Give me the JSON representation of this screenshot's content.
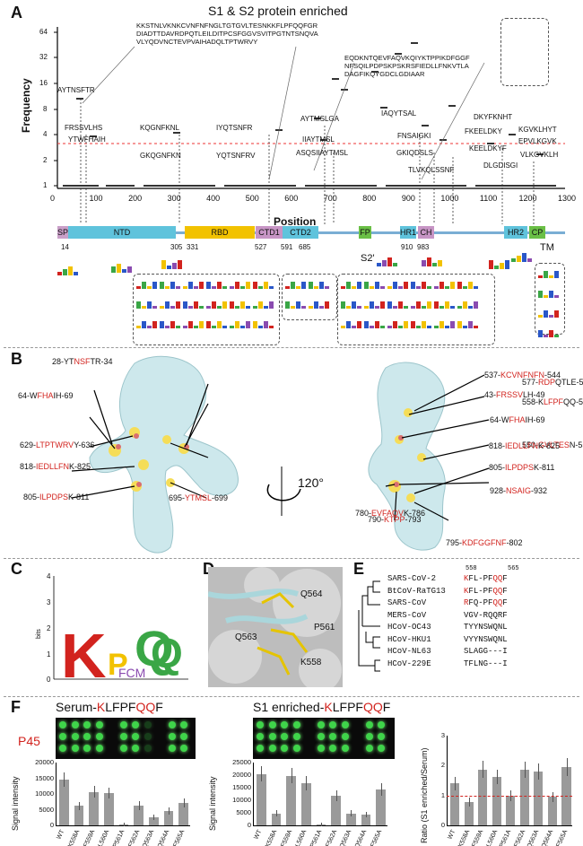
{
  "panels": {
    "a": "A",
    "b": "B",
    "c": "C",
    "d": "D",
    "e": "E",
    "f": "F"
  },
  "panel_a": {
    "title": "S1 & S2 protein enriched",
    "seq_block_1": "KKSTNLVKNKCVNFNFNGLTGTGVLTESNKKFLPFQQFGR\nDIADTTDAVRDPQTLEILDITPCSFGGVSVITPGTNTSNQVA\nVLYQDVNCTEVPVAIHADQLTPTWRVY",
    "seq_block_2": "EQDKNTQEVFAQVKQIYKTPPIKDFGGF\nNFSQILPDPSKPSKRSFIEDLLFNKVTLA\nDAGFIKQYGDCLGDIAAR",
    "peptides": [
      "AYTNSFTR",
      "FRSSVLHS",
      "YTWFHAIH",
      "KQGNFKNL",
      "GKQGNFKN",
      "IYQTSNFR",
      "YQTSNFRV",
      "AYTMSLGA",
      "IIAYTMSL",
      "ASQSIIAYTMSL",
      "IAQYTSAL",
      "FNSAIGKI",
      "GKIQDSLS",
      "TLVKQLSSNF",
      "DKYFKNHT",
      "FKEELDKY",
      "KEELDKYF",
      "DLGDISGI",
      "KGVKLHYT",
      "EPVLKGVK",
      "VLKGVKLH"
    ],
    "axis_y_label": "Frequency",
    "axis_y_ticks": [
      "64",
      "32",
      "16",
      "8",
      "4",
      "2",
      "1"
    ],
    "axis_x_label": "Position",
    "axis_x_ticks": [
      "0",
      "100",
      "200",
      "300",
      "400",
      "500",
      "600",
      "700",
      "800",
      "900",
      "1000",
      "1100",
      "1200",
      "1300"
    ],
    "domains": [
      {
        "name": "SP",
        "color": "#c99fc8"
      },
      {
        "name": "NTD",
        "color": "#5fc3dc"
      },
      {
        "name": "RBD",
        "color": "#f2c200"
      },
      {
        "name": "CTD1",
        "color": "#c795c5"
      },
      {
        "name": "CTD2",
        "color": "#5fc3dc"
      },
      {
        "name": "FP",
        "color": "#6abf46"
      },
      {
        "name": "HR1",
        "color": "#5fc3dc"
      },
      {
        "name": "CH",
        "color": "#c795c5"
      },
      {
        "name": "HR2",
        "color": "#5fc3dc"
      },
      {
        "name": "CP",
        "color": "#6abf46"
      }
    ],
    "domain_positions": [
      "14",
      "305",
      "331",
      "527",
      "591",
      "685",
      "910",
      "983"
    ],
    "tm_label": "TM",
    "s2_label": "S2'"
  },
  "panel_b": {
    "left_labels": [
      {
        "pre": "28-",
        "a": "YT",
        "r": "NSF",
        "b": "TR",
        "post": "-34"
      },
      {
        "pre": "64-",
        "a": "W",
        "r": "FHA",
        "b": "IH",
        "post": "-69"
      },
      {
        "pre": "577-",
        "a": "",
        "r": "RDP",
        "b": "QTLE",
        "post": "-583"
      },
      {
        "pre": "558-",
        "a": "K",
        "r": "LFPF",
        "b": "QQ",
        "post": "-565"
      },
      {
        "pre": "629-",
        "a": "",
        "r": "LTPTWRV",
        "b": "Y",
        "post": "-636"
      },
      {
        "pre": "550-",
        "a": "",
        "r": "GVLTES",
        "b": "N",
        "post": "-556"
      },
      {
        "pre": "818-",
        "a": "",
        "r": "IEDLLFN",
        "b": "K",
        "post": "-825"
      },
      {
        "pre": "695-",
        "a": "",
        "r": "YTMSL",
        "b": "",
        "post": "-699"
      },
      {
        "pre": "805-",
        "a": "",
        "r": "ILPDPS",
        "b": "K",
        "post": "-811"
      }
    ],
    "right_labels": [
      {
        "pre": "537-",
        "a": "",
        "r": "KCVNFNFN",
        "b": "",
        "post": "-544"
      },
      {
        "pre": "43-",
        "a": "",
        "r": "FRSSV",
        "b": "LH",
        "post": "-49"
      },
      {
        "pre": "64-",
        "a": "W",
        "r": "FHA",
        "b": "IH",
        "post": "-69"
      },
      {
        "pre": "818-",
        "a": "",
        "r": "IEDLLFN",
        "b": "K",
        "post": "-825"
      },
      {
        "pre": "805-",
        "a": "",
        "r": "ILPDPS",
        "b": "K",
        "post": "-811"
      },
      {
        "pre": "780-",
        "a": "",
        "r": "EVFAQV",
        "b": "K",
        "post": "-786"
      },
      {
        "pre": "928-",
        "a": "",
        "r": "NSAIG",
        "b": "",
        "post": "-932"
      },
      {
        "pre": "790-",
        "a": "",
        "r": "KTPP",
        "b": "",
        "post": "-793"
      },
      {
        "pre": "795-",
        "a": "",
        "r": "KDFGGFNF",
        "b": "",
        "post": "-802"
      }
    ],
    "rotation": "120°"
  },
  "panel_c": {
    "ylabel": "bits",
    "yticks": [
      "4",
      "3",
      "2",
      "1",
      "0"
    ]
  },
  "panel_d": {
    "residues": [
      "Q564",
      "P561",
      "Q563",
      "K558"
    ]
  },
  "panel_e": {
    "range_start": "558",
    "range_end": "565",
    "rows": [
      {
        "name": "SARS-CoV-2",
        "seq": "KFL-PFQQF"
      },
      {
        "name": "BtCoV-RaTG13",
        "seq": "KFL-PFQQF"
      },
      {
        "name": "SARS-CoV",
        "seq": "RFQ-PFQQF"
      },
      {
        "name": "MERS-CoV",
        "seq": "VGV-RQQRF"
      },
      {
        "name": "HCoV-OC43",
        "seq": "TYYNSWQNL"
      },
      {
        "name": "HCoV-HKU1",
        "seq": "VYYNSWQNL"
      },
      {
        "name": "HCoV-NL63",
        "seq": "SLAGG---I"
      },
      {
        "name": "HCoV-229E",
        "seq": "TFLNG---I"
      }
    ]
  },
  "panel_f": {
    "peptide_label": "P45",
    "title_1_pre": "Serum-",
    "title_1_k": "K",
    "title_1_mid": "LFPF",
    "title_1_qq": "QQ",
    "title_1_end": "F",
    "title_2_pre": "S1 enriched-",
    "title_2_k": "K",
    "title_2_mid": "LFPF",
    "title_2_qq": "QQ",
    "title_2_end": "F",
    "ylabel_1": "Signal intensity",
    "ylabel_2": "Signal intensity",
    "ylabel_3": "Ratio (S1 enriched/Serum)",
    "yticks_1": [
      "20000",
      "15000",
      "10000",
      "5000",
      "0"
    ],
    "yticks_2": [
      "25000",
      "20000",
      "15000",
      "10000",
      "5000",
      "0"
    ],
    "yticks_3": [
      "3",
      "2",
      "1",
      "0"
    ]
  },
  "chart_data": [
    {
      "type": "bar",
      "categories": [
        "WT",
        "K558A",
        "F559A",
        "L560A",
        "P561A",
        "F562A",
        "Q563A",
        "Q564A",
        "F565A"
      ],
      "values": [
        14500,
        6200,
        10700,
        10300,
        100,
        6300,
        2600,
        4500,
        7200
      ],
      "ylabel": "Signal intensity",
      "ylim": [
        0,
        20000
      ]
    },
    {
      "type": "bar",
      "categories": [
        "WT",
        "K558A",
        "F559A",
        "L560A",
        "P561A",
        "F562A",
        "Q563A",
        "Q564A",
        "F565A"
      ],
      "values": [
        20500,
        4800,
        19800,
        16800,
        100,
        11700,
        4700,
        4300,
        14200
      ],
      "ylabel": "Signal intensity",
      "ylim": [
        0,
        25000
      ]
    },
    {
      "type": "bar",
      "categories": [
        "WT",
        "K558A",
        "F559A",
        "L560A",
        "P561A",
        "F562A",
        "Q563A",
        "Q564A",
        "F565A"
      ],
      "values": [
        1.4,
        0.78,
        1.87,
        1.62,
        1.0,
        1.86,
        1.8,
        0.95,
        1.95
      ],
      "ylabel": "Ratio (S1 enriched/Serum)",
      "ylim": [
        0,
        3
      ]
    }
  ]
}
